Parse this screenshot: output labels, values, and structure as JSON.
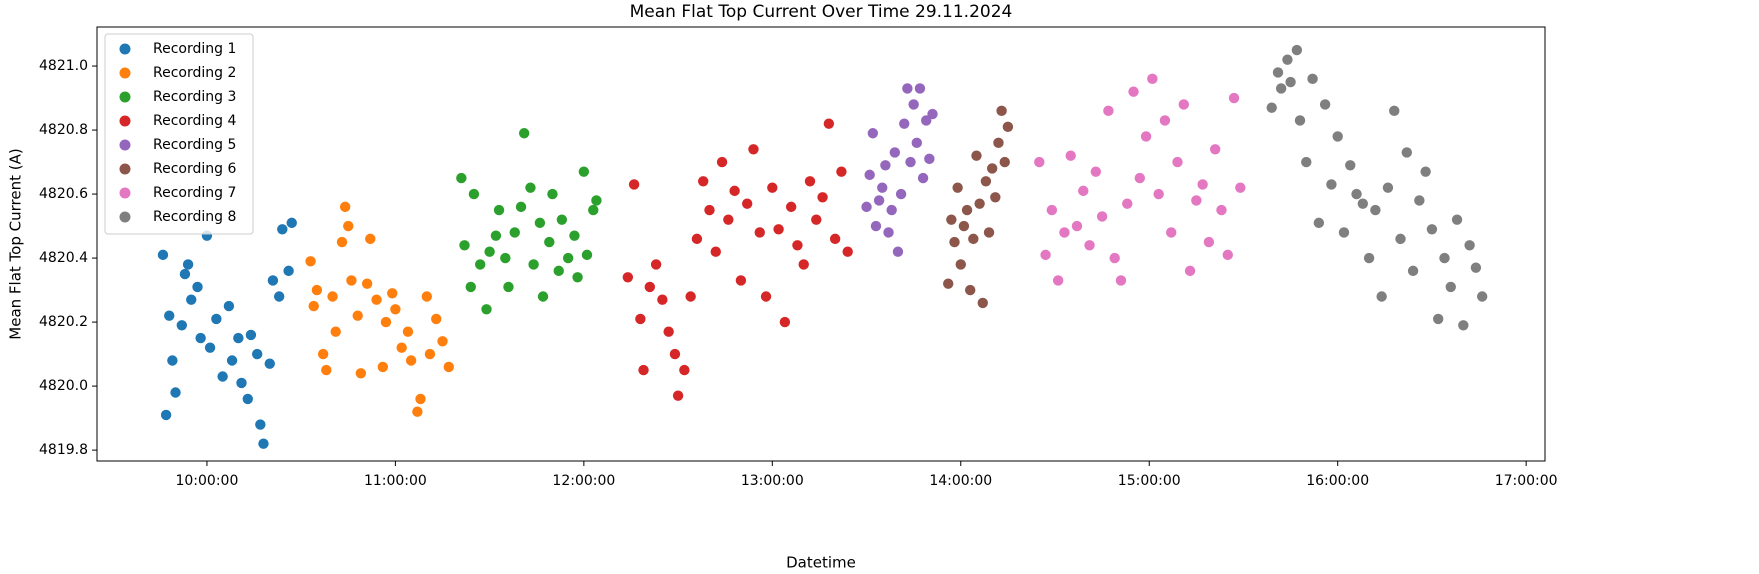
{
  "chart_data": {
    "type": "scatter",
    "title": "Mean Flat Top Current Over Time 29.11.2024",
    "x_label": "Datetime",
    "y_label": "Mean Flat Top Current (A)",
    "xlim": [
      "09:25:00",
      "17:06:00"
    ],
    "xticks": [
      "10:00:00",
      "11:00:00",
      "12:00:00",
      "13:00:00",
      "14:00:00",
      "15:00:00",
      "16:00:00",
      "17:00:00"
    ],
    "ylim": [
      4819.766,
      4821.122
    ],
    "yticks": [
      4819.8,
      {
        "value": 4820,
        "label": "4820.0"
      },
      4820.2,
      4820.4,
      4820.6,
      4820.8,
      {
        "value": 4821,
        "label": "4821.0"
      }
    ],
    "grid": false,
    "legend_position": "upper-left",
    "series": [
      {
        "name": "Recording 1",
        "color": "#1f77b4",
        "x": [
          "09:46:00",
          "09:47:00",
          "09:48:00",
          "09:49:00",
          "09:50:00",
          "09:52:00",
          "09:53:00",
          "09:54:00",
          "09:55:00",
          "09:57:00",
          "09:58:00",
          "10:00:00",
          "10:01:00",
          "10:03:00",
          "10:05:00",
          "10:07:00",
          "10:08:00",
          "10:10:00",
          "10:11:00",
          "10:13:00",
          "10:14:00",
          "10:16:00",
          "10:17:00",
          "10:18:00",
          "10:20:00",
          "10:21:00",
          "10:23:00",
          "10:24:00",
          "10:26:00",
          "10:27:00"
        ],
        "values": [
          4820.41,
          4819.91,
          4820.22,
          4820.08,
          4819.98,
          4820.19,
          4820.35,
          4820.38,
          4820.27,
          4820.31,
          4820.15,
          4820.47,
          4820.12,
          4820.21,
          4820.03,
          4820.25,
          4820.08,
          4820.15,
          4820.01,
          4819.96,
          4820.16,
          4820.1,
          4819.88,
          4819.82,
          4820.07,
          4820.33,
          4820.28,
          4820.49,
          4820.36,
          4820.51
        ]
      },
      {
        "name": "Recording 2",
        "color": "#ff7f0e",
        "x": [
          "10:33:00",
          "10:34:00",
          "10:35:00",
          "10:37:00",
          "10:38:00",
          "10:40:00",
          "10:41:00",
          "10:43:00",
          "10:44:00",
          "10:45:00",
          "10:46:00",
          "10:48:00",
          "10:49:00",
          "10:51:00",
          "10:52:00",
          "10:54:00",
          "10:56:00",
          "10:57:00",
          "10:59:00",
          "11:00:00",
          "11:02:00",
          "11:04:00",
          "11:05:00",
          "11:07:00",
          "11:08:00",
          "11:10:00",
          "11:11:00",
          "11:13:00",
          "11:15:00",
          "11:17:00"
        ],
        "values": [
          4820.39,
          4820.25,
          4820.3,
          4820.1,
          4820.05,
          4820.28,
          4820.17,
          4820.45,
          4820.56,
          4820.5,
          4820.33,
          4820.22,
          4820.04,
          4820.32,
          4820.46,
          4820.27,
          4820.06,
          4820.2,
          4820.29,
          4820.24,
          4820.12,
          4820.17,
          4820.08,
          4819.92,
          4819.96,
          4820.28,
          4820.1,
          4820.21,
          4820.14,
          4820.06
        ]
      },
      {
        "name": "Recording 3",
        "color": "#2ca02c",
        "x": [
          "11:21:00",
          "11:22:00",
          "11:24:00",
          "11:25:00",
          "11:27:00",
          "11:29:00",
          "11:30:00",
          "11:32:00",
          "11:33:00",
          "11:35:00",
          "11:36:00",
          "11:38:00",
          "11:40:00",
          "11:41:00",
          "11:43:00",
          "11:44:00",
          "11:46:00",
          "11:47:00",
          "11:49:00",
          "11:50:00",
          "11:52:00",
          "11:53:00",
          "11:55:00",
          "11:57:00",
          "11:58:00",
          "12:00:00",
          "12:01:00",
          "12:03:00",
          "12:04:00"
        ],
        "values": [
          4820.65,
          4820.44,
          4820.31,
          4820.6,
          4820.38,
          4820.24,
          4820.42,
          4820.47,
          4820.55,
          4820.4,
          4820.31,
          4820.48,
          4820.56,
          4820.79,
          4820.62,
          4820.38,
          4820.51,
          4820.28,
          4820.45,
          4820.6,
          4820.36,
          4820.52,
          4820.4,
          4820.47,
          4820.34,
          4820.67,
          4820.41,
          4820.55,
          4820.58
        ]
      },
      {
        "name": "Recording 4",
        "color": "#d62728",
        "x": [
          "12:14:00",
          "12:16:00",
          "12:18:00",
          "12:19:00",
          "12:21:00",
          "12:23:00",
          "12:25:00",
          "12:27:00",
          "12:29:00",
          "12:30:00",
          "12:32:00",
          "12:34:00",
          "12:36:00",
          "12:38:00",
          "12:40:00",
          "12:42:00",
          "12:44:00",
          "12:46:00",
          "12:48:00",
          "12:50:00",
          "12:52:00",
          "12:54:00",
          "12:56:00",
          "12:58:00",
          "13:00:00",
          "13:02:00",
          "13:04:00",
          "13:06:00",
          "13:08:00",
          "13:10:00",
          "13:12:00",
          "13:14:00",
          "13:16:00",
          "13:18:00",
          "13:20:00",
          "13:22:00",
          "13:24:00"
        ],
        "values": [
          4820.34,
          4820.63,
          4820.21,
          4820.05,
          4820.31,
          4820.38,
          4820.27,
          4820.17,
          4820.1,
          4819.97,
          4820.05,
          4820.28,
          4820.46,
          4820.64,
          4820.55,
          4820.42,
          4820.7,
          4820.52,
          4820.61,
          4820.33,
          4820.57,
          4820.74,
          4820.48,
          4820.28,
          4820.62,
          4820.49,
          4820.2,
          4820.56,
          4820.44,
          4820.38,
          4820.64,
          4820.52,
          4820.59,
          4820.82,
          4820.46,
          4820.67,
          4820.42
        ]
      },
      {
        "name": "Recording 5",
        "color": "#9467bd",
        "x": [
          "13:30:00",
          "13:31:00",
          "13:32:00",
          "13:33:00",
          "13:34:00",
          "13:35:00",
          "13:36:00",
          "13:37:00",
          "13:38:00",
          "13:39:00",
          "13:40:00",
          "13:41:00",
          "13:42:00",
          "13:43:00",
          "13:44:00",
          "13:45:00",
          "13:46:00",
          "13:47:00",
          "13:48:00",
          "13:49:00",
          "13:50:00",
          "13:51:00"
        ],
        "values": [
          4820.56,
          4820.66,
          4820.79,
          4820.5,
          4820.58,
          4820.62,
          4820.69,
          4820.48,
          4820.55,
          4820.73,
          4820.42,
          4820.6,
          4820.82,
          4820.93,
          4820.7,
          4820.88,
          4820.76,
          4820.93,
          4820.65,
          4820.83,
          4820.71,
          4820.85
        ]
      },
      {
        "name": "Recording 6",
        "color": "#8c564b",
        "x": [
          "13:56:00",
          "13:57:00",
          "13:58:00",
          "13:59:00",
          "14:00:00",
          "14:01:00",
          "14:02:00",
          "14:03:00",
          "14:04:00",
          "14:05:00",
          "14:06:00",
          "14:07:00",
          "14:08:00",
          "14:09:00",
          "14:10:00",
          "14:11:00",
          "14:12:00",
          "14:13:00",
          "14:14:00",
          "14:15:00"
        ],
        "values": [
          4820.32,
          4820.52,
          4820.45,
          4820.62,
          4820.38,
          4820.5,
          4820.55,
          4820.3,
          4820.46,
          4820.72,
          4820.57,
          4820.26,
          4820.64,
          4820.48,
          4820.68,
          4820.59,
          4820.76,
          4820.86,
          4820.7,
          4820.81
        ]
      },
      {
        "name": "Recording 7",
        "color": "#e377c2",
        "x": [
          "14:25:00",
          "14:27:00",
          "14:29:00",
          "14:31:00",
          "14:33:00",
          "14:35:00",
          "14:37:00",
          "14:39:00",
          "14:41:00",
          "14:43:00",
          "14:45:00",
          "14:47:00",
          "14:49:00",
          "14:51:00",
          "14:53:00",
          "14:55:00",
          "14:57:00",
          "14:59:00",
          "15:01:00",
          "15:03:00",
          "15:05:00",
          "15:07:00",
          "15:09:00",
          "15:11:00",
          "15:13:00",
          "15:15:00",
          "15:17:00",
          "15:19:00",
          "15:21:00",
          "15:23:00",
          "15:25:00",
          "15:27:00",
          "15:29:00"
        ],
        "values": [
          4820.7,
          4820.41,
          4820.55,
          4820.33,
          4820.48,
          4820.72,
          4820.5,
          4820.61,
          4820.44,
          4820.67,
          4820.53,
          4820.86,
          4820.4,
          4820.33,
          4820.57,
          4820.92,
          4820.65,
          4820.78,
          4820.96,
          4820.6,
          4820.83,
          4820.48,
          4820.7,
          4820.88,
          4820.36,
          4820.58,
          4820.63,
          4820.45,
          4820.74,
          4820.55,
          4820.41,
          4820.9,
          4820.62
        ]
      },
      {
        "name": "Recording 8",
        "color": "#7f7f7f",
        "x": [
          "15:39:00",
          "15:41:00",
          "15:42:00",
          "15:44:00",
          "15:45:00",
          "15:47:00",
          "15:48:00",
          "15:50:00",
          "15:52:00",
          "15:54:00",
          "15:56:00",
          "15:58:00",
          "16:00:00",
          "16:02:00",
          "16:04:00",
          "16:06:00",
          "16:08:00",
          "16:10:00",
          "16:12:00",
          "16:14:00",
          "16:16:00",
          "16:18:00",
          "16:20:00",
          "16:22:00",
          "16:24:00",
          "16:26:00",
          "16:28:00",
          "16:30:00",
          "16:32:00",
          "16:34:00",
          "16:36:00",
          "16:38:00",
          "16:40:00",
          "16:42:00",
          "16:44:00",
          "16:46:00"
        ],
        "values": [
          4820.87,
          4820.98,
          4820.93,
          4821.02,
          4820.95,
          4821.05,
          4820.83,
          4820.7,
          4820.96,
          4820.51,
          4820.88,
          4820.63,
          4820.78,
          4820.48,
          4820.69,
          4820.6,
          4820.57,
          4820.4,
          4820.55,
          4820.28,
          4820.62,
          4820.86,
          4820.46,
          4820.73,
          4820.36,
          4820.58,
          4820.67,
          4820.49,
          4820.21,
          4820.4,
          4820.31,
          4820.52,
          4820.19,
          4820.44,
          4820.37,
          4820.28
        ]
      }
    ]
  }
}
